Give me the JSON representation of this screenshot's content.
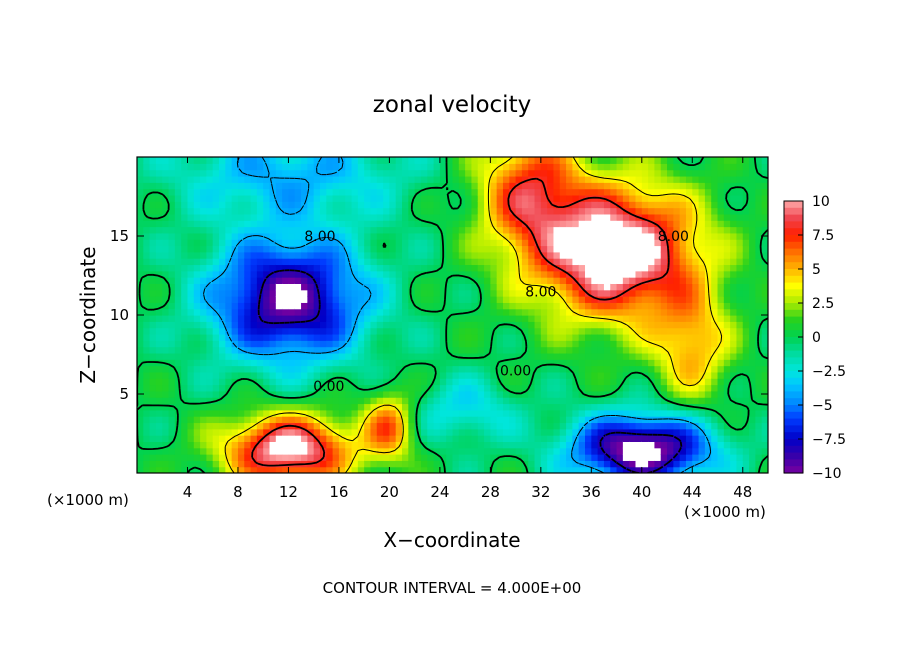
{
  "chart_data": {
    "type": "heatmap",
    "title": "zonal velocity",
    "xlabel": "X−coordinate",
    "ylabel": "Z−coordinate",
    "x_unit_left": "(×1000 m)",
    "x_unit_right": "(×1000 m)",
    "footer": "CONTOUR INTERVAL = 4.000E+00",
    "xlim": [
      0,
      50
    ],
    "ylim": [
      0,
      20
    ],
    "x_ticks": [
      4,
      8,
      12,
      16,
      20,
      24,
      28,
      32,
      36,
      40,
      44,
      48
    ],
    "x_tick_labels": [
      "4",
      "8",
      "12",
      "16",
      "20",
      "24",
      "28",
      "32",
      "36",
      "40",
      "44",
      "48"
    ],
    "y_ticks": [
      5,
      10,
      15
    ],
    "y_tick_labels": [
      "5",
      "10",
      "15"
    ],
    "colorbar": {
      "range": [
        -10,
        10
      ],
      "ticks": [
        10,
        7.5,
        5,
        2.5,
        0,
        -2.5,
        -5,
        -7.5,
        -10
      ],
      "tick_labels": [
        "10",
        "7.5",
        "5",
        "2.5",
        "0",
        "−2.5",
        "−5",
        "−7.5",
        "−10"
      ]
    },
    "contour_interval": 4,
    "contour_labels": [
      {
        "text": "8.00",
        "x": 14.5,
        "y": 15.0
      },
      {
        "text": "0.00",
        "x": 15.2,
        "y": 5.5
      },
      {
        "text": "8.00",
        "x": 32.0,
        "y": 11.5
      },
      {
        "text": "8.00",
        "x": 42.5,
        "y": 15.0
      },
      {
        "text": "0.00",
        "x": 30.0,
        "y": 6.5
      }
    ],
    "features": [
      {
        "name": "upper-left jet",
        "x": 12,
        "z": 11,
        "value": -10,
        "rx": 6.0,
        "rz": 3.8
      },
      {
        "name": "upper-right jet",
        "x": 38,
        "z": 14,
        "value": 12,
        "rx": 6.5,
        "rz": 4.2
      },
      {
        "name": "lower-left jet",
        "x": 12,
        "z": 1.5,
        "value": 11,
        "rx": 5.0,
        "rz": 2.2
      },
      {
        "name": "lower-right jet",
        "x": 40,
        "z": 1.5,
        "value": -11,
        "rx": 5.5,
        "rz": 2.2
      }
    ],
    "grid": false,
    "legend": "colorbar right"
  }
}
